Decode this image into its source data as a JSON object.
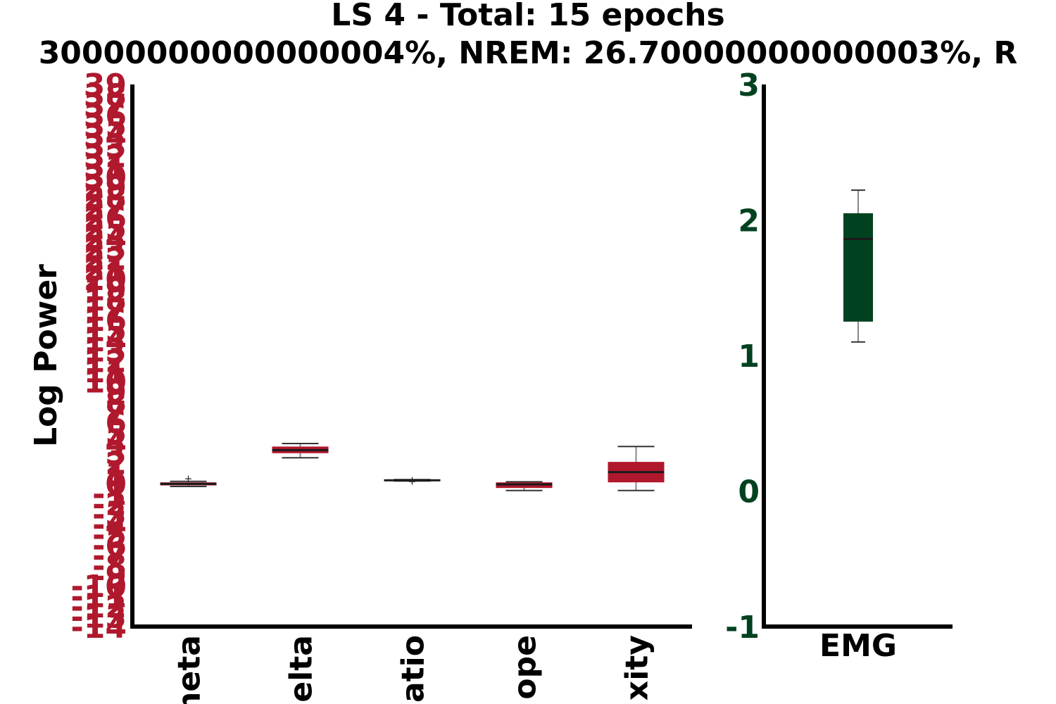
{
  "title_line1": "LS 4 - Total: 15 epochs",
  "title_line2": "30000000000000004%, NREM: 26.70000000000003%, R",
  "colors": {
    "left": "#b0182d",
    "right": "#004220",
    "median": "#1a1a1a",
    "whisker": "#888888",
    "axis": "#000000"
  },
  "chart_data": [
    {
      "type": "box",
      "ylabel": "Log Power",
      "ylim": [
        -14,
        39
      ],
      "ytick_labels": [
        "-14",
        "-13",
        "-12",
        "-11",
        "-10",
        "-9",
        "-8",
        "-7",
        "-6",
        "-5",
        "-4",
        "-3",
        "-2",
        "-1",
        "0",
        "1",
        "2",
        "3",
        "4",
        "5",
        "6",
        "7",
        "8",
        "9",
        "10",
        "11",
        "12",
        "13",
        "14",
        "15",
        "16",
        "17",
        "18",
        "19",
        "20",
        "21",
        "22",
        "23",
        "24",
        "25",
        "26",
        "27",
        "28",
        "29",
        "30",
        "31",
        "32",
        "33",
        "34",
        "35",
        "36",
        "37",
        "38",
        "39"
      ],
      "categories": [
        "Theta",
        "Delta",
        "Theta/Delta Ratio",
        "Slope",
        "Complexity"
      ],
      "visible_category_text": [
        "heta",
        "elta",
        "atio",
        "ope",
        "xity"
      ],
      "boxes": [
        {
          "whisker_low": -0.3,
          "q1": -0.2,
          "median": -0.05,
          "q3": 0.1,
          "whisker_high": 0.2,
          "fliers": [
            0.5
          ]
        },
        {
          "whisker_low": 2.5,
          "q1": 2.95,
          "median": 3.25,
          "q3": 3.6,
          "whisker_high": 3.9,
          "fliers": []
        },
        {
          "whisker_low": 0.23,
          "q1": 0.27,
          "median": 0.3,
          "q3": 0.33,
          "whisker_high": 0.37,
          "fliers": [
            0.35,
            0.2
          ]
        },
        {
          "whisker_low": -0.7,
          "q1": -0.45,
          "median": -0.1,
          "q3": 0.1,
          "whisker_high": 0.15,
          "fliers": []
        },
        {
          "whisker_low": -0.7,
          "q1": 0.1,
          "median": 1.1,
          "q3": 2.1,
          "whisker_high": 3.6,
          "fliers": []
        }
      ]
    },
    {
      "type": "box",
      "ylim": [
        -1,
        3
      ],
      "yticks": [
        -1,
        0,
        1,
        2,
        3
      ],
      "categories": [
        "EMG"
      ],
      "boxes": [
        {
          "whisker_low": 1.1,
          "q1": 1.25,
          "median": 1.86,
          "q3": 2.05,
          "whisker_high": 2.22,
          "fliers": []
        }
      ]
    }
  ]
}
